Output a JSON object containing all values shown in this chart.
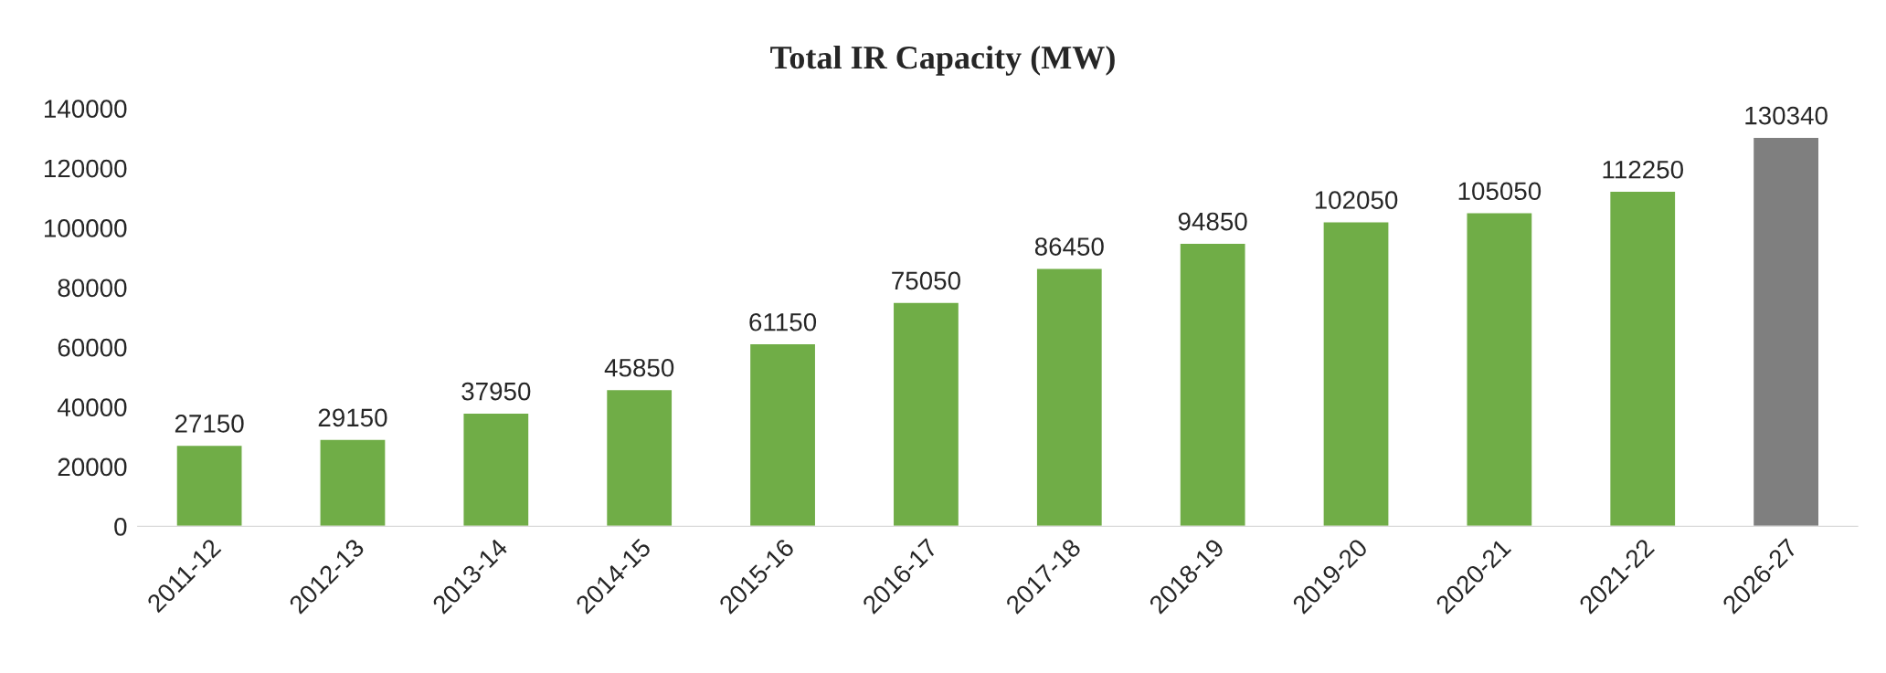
{
  "chart_data": {
    "type": "bar",
    "title": "Total IR Capacity (MW)",
    "categories": [
      "2011-12",
      "2012-13",
      "2013-14",
      "2014-15",
      "2015-16",
      "2016-17",
      "2017-18",
      "2018-19",
      "2019-20",
      "2020-21",
      "2021-22",
      "2026-27"
    ],
    "values": [
      27150,
      29150,
      37950,
      45850,
      61150,
      75050,
      86450,
      94850,
      102050,
      105050,
      112250,
      130340
    ],
    "colors": [
      "#70ad47",
      "#70ad47",
      "#70ad47",
      "#70ad47",
      "#70ad47",
      "#70ad47",
      "#70ad47",
      "#70ad47",
      "#70ad47",
      "#70ad47",
      "#70ad47",
      "#7f7f7f"
    ],
    "ylim": [
      0,
      140000
    ],
    "yticks": [
      0,
      20000,
      40000,
      60000,
      80000,
      100000,
      120000,
      140000
    ],
    "data_labels": true,
    "grid": false,
    "legend": false
  }
}
